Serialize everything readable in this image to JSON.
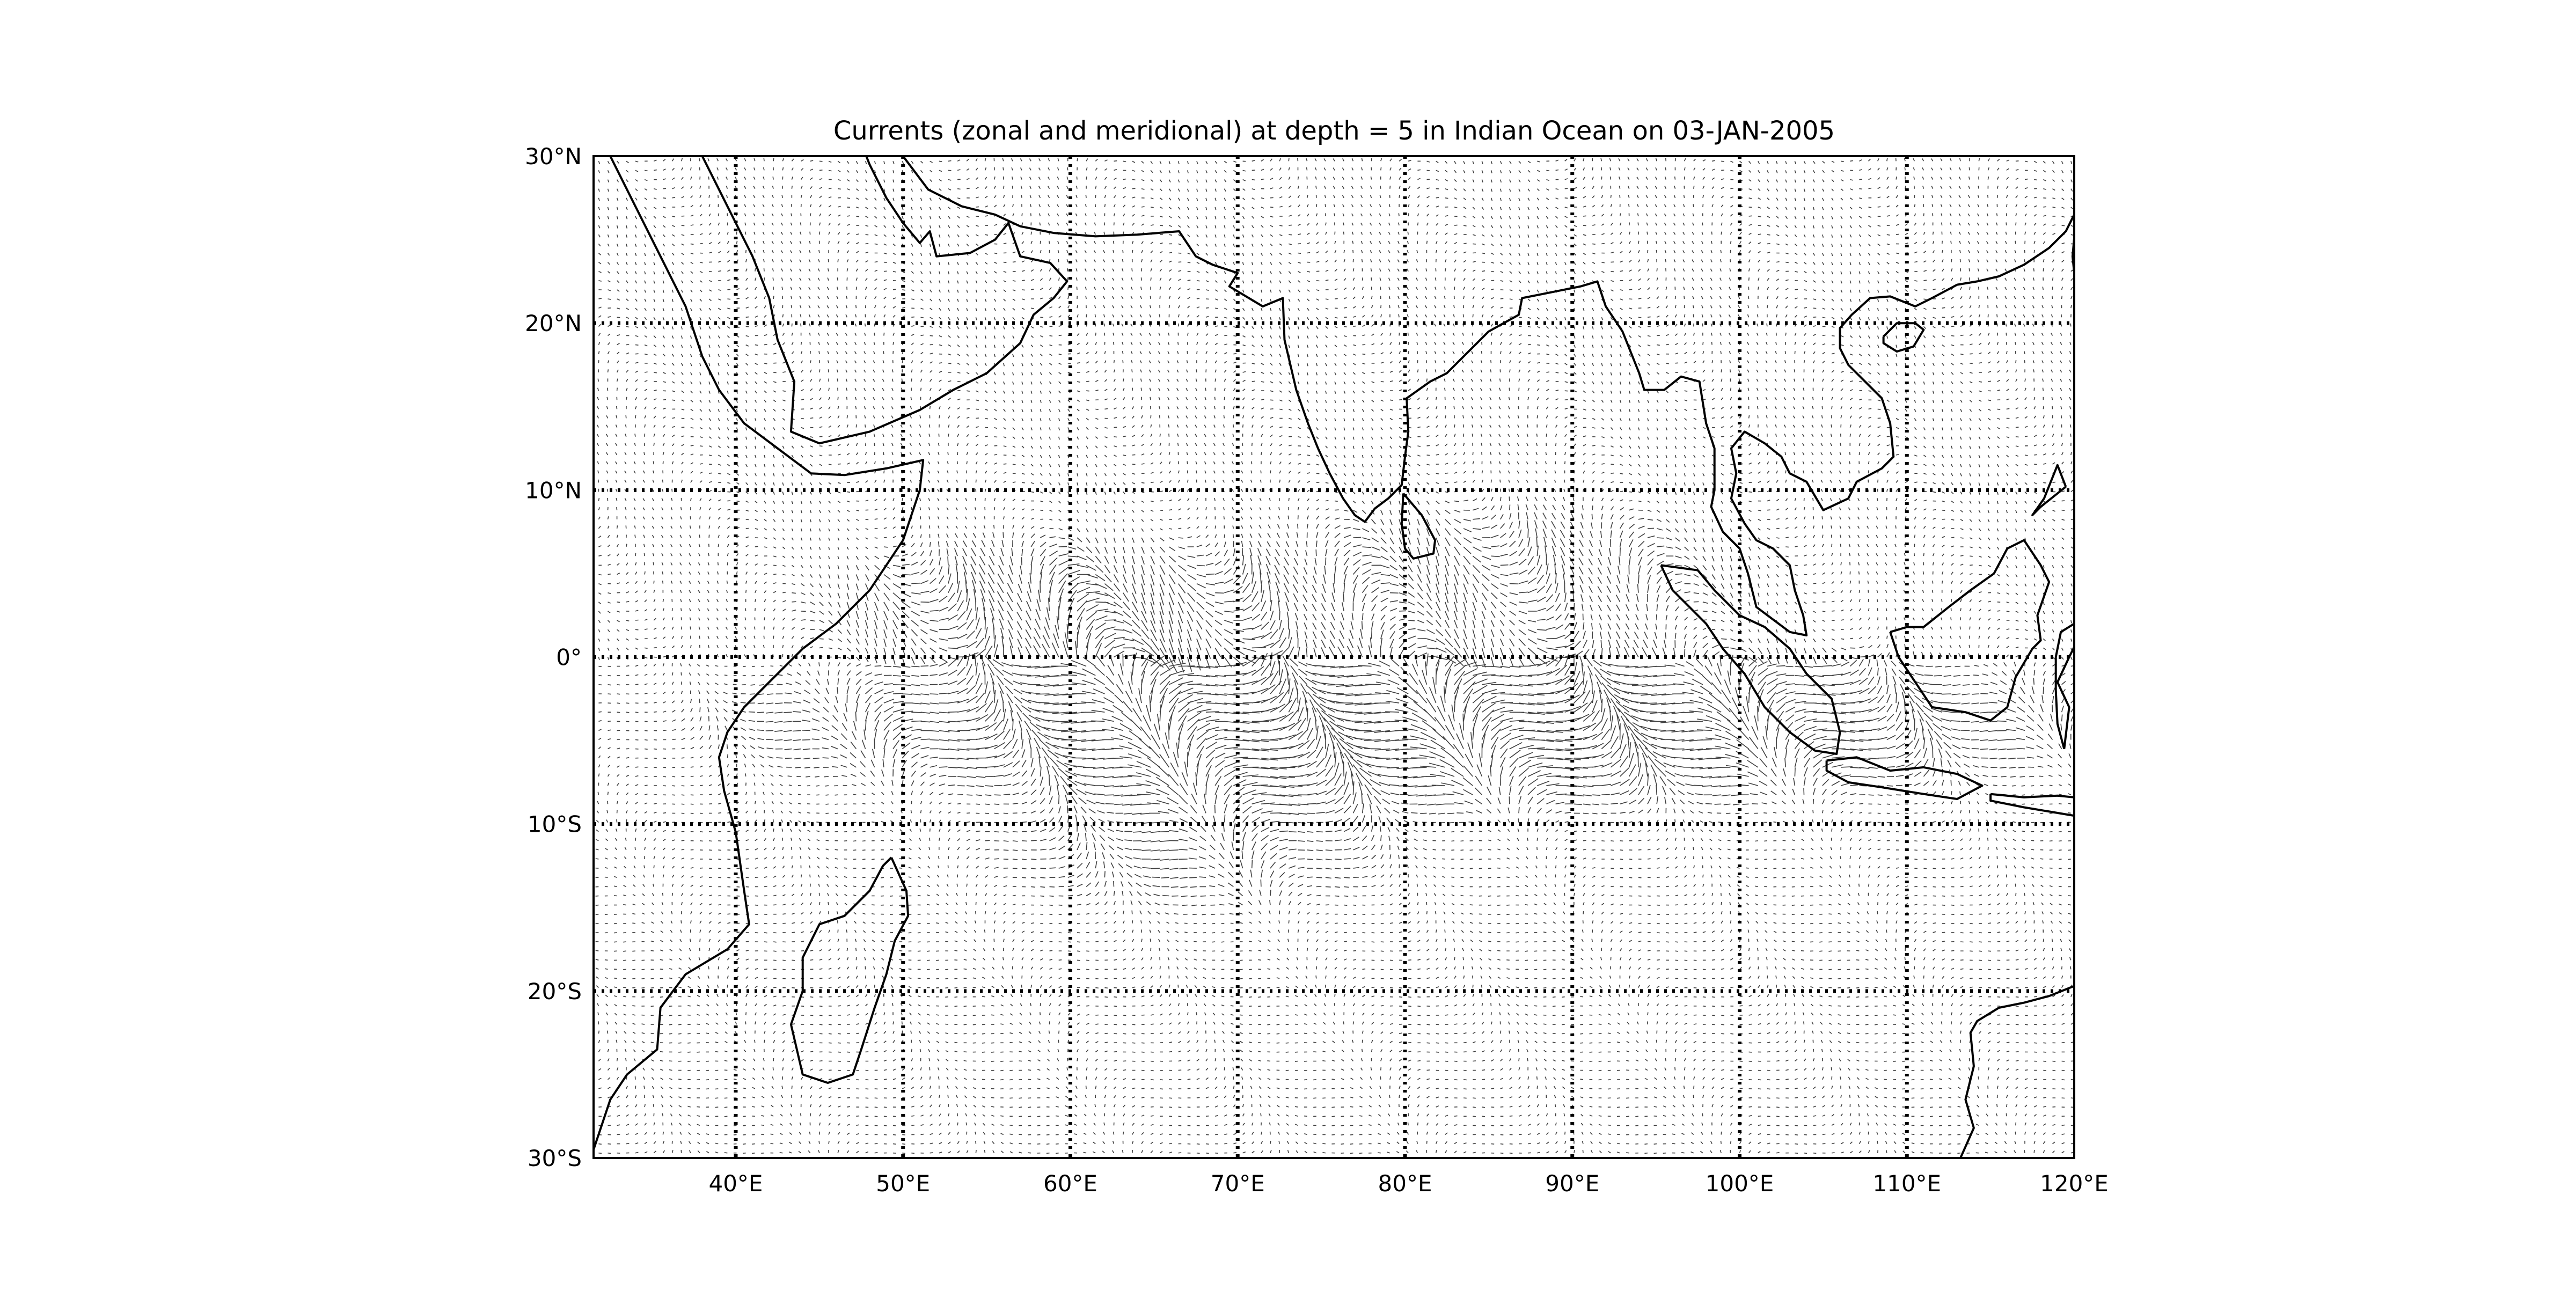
{
  "title": "Currents (zonal and meridional) at depth = 5 in Indian Ocean on 03-JAN-2005",
  "map": {
    "lon_range": [
      31.5,
      120
    ],
    "lat_range": [
      -30,
      30
    ],
    "projection": "cylindrical",
    "gridlines": "dotted",
    "lon_ticks": [
      {
        "value": 40,
        "label": "40°E"
      },
      {
        "value": 50,
        "label": "50°E"
      },
      {
        "value": 60,
        "label": "60°E"
      },
      {
        "value": 70,
        "label": "70°E"
      },
      {
        "value": 80,
        "label": "80°E"
      },
      {
        "value": 90,
        "label": "90°E"
      },
      {
        "value": 100,
        "label": "100°E"
      },
      {
        "value": 110,
        "label": "110°E"
      },
      {
        "value": 120,
        "label": "120°E"
      }
    ],
    "lat_ticks": [
      {
        "value": 30,
        "label": "30°N"
      },
      {
        "value": 20,
        "label": "20°N"
      },
      {
        "value": 10,
        "label": "10°N"
      },
      {
        "value": 0,
        "label": "0°"
      },
      {
        "value": -10,
        "label": "10°S"
      },
      {
        "value": -20,
        "label": "20°S"
      },
      {
        "value": -30,
        "label": "30°S"
      }
    ],
    "coastlines": [
      {
        "name": "africa-coast",
        "points": [
          [
            32.5,
            30
          ],
          [
            34,
            27
          ],
          [
            35.5,
            24
          ],
          [
            37,
            21
          ],
          [
            38,
            18
          ],
          [
            39,
            16
          ],
          [
            40.5,
            14
          ],
          [
            42.5,
            12.5
          ],
          [
            44.5,
            11
          ],
          [
            46.5,
            10.9
          ],
          [
            49,
            11.3
          ],
          [
            51.2,
            11.8
          ],
          [
            51,
            10
          ],
          [
            50,
            7
          ],
          [
            48,
            4
          ],
          [
            46,
            2
          ],
          [
            44,
            0.5
          ],
          [
            42,
            -1.5
          ],
          [
            40.5,
            -3
          ],
          [
            39.5,
            -4.5
          ],
          [
            39,
            -6
          ],
          [
            39.3,
            -8
          ],
          [
            40,
            -10.5
          ],
          [
            40.5,
            -14
          ],
          [
            40.8,
            -16
          ],
          [
            39.5,
            -17.5
          ],
          [
            37,
            -19
          ],
          [
            35.5,
            -21
          ],
          [
            35.3,
            -23.5
          ],
          [
            33.5,
            -25
          ],
          [
            32.5,
            -26.5
          ],
          [
            31.5,
            -29.5
          ]
        ]
      },
      {
        "name": "arabia-coast",
        "points": [
          [
            38,
            30
          ],
          [
            39,
            28
          ],
          [
            40,
            26
          ],
          [
            41,
            24
          ],
          [
            42,
            21.5
          ],
          [
            42.5,
            19
          ],
          [
            43.5,
            16.5
          ],
          [
            43.3,
            13.5
          ],
          [
            45,
            12.8
          ],
          [
            48,
            13.5
          ],
          [
            51,
            14.8
          ],
          [
            53,
            16
          ],
          [
            55,
            17
          ],
          [
            57,
            18.8
          ],
          [
            57.8,
            20.5
          ],
          [
            59,
            21.5
          ],
          [
            59.8,
            22.5
          ],
          [
            58.8,
            23.6
          ],
          [
            57,
            24
          ],
          [
            56.3,
            26
          ],
          [
            55.5,
            25
          ],
          [
            54,
            24.2
          ],
          [
            52,
            24
          ],
          [
            51.6,
            25.5
          ],
          [
            51,
            24.8
          ],
          [
            50,
            26
          ],
          [
            49,
            27.5
          ],
          [
            48,
            29.5
          ],
          [
            47.8,
            30
          ]
        ]
      },
      {
        "name": "persian-gulf-north-coast",
        "points": [
          [
            50,
            30
          ],
          [
            51.5,
            28
          ],
          [
            53.5,
            27
          ],
          [
            55.5,
            26.5
          ],
          [
            57,
            25.8
          ],
          [
            59,
            25.4
          ],
          [
            61.5,
            25.2
          ],
          [
            64,
            25.3
          ],
          [
            66.5,
            25.5
          ],
          [
            67.5,
            24
          ],
          [
            68.5,
            23.5
          ],
          [
            70,
            23
          ],
          [
            69.5,
            22.2
          ],
          [
            71.5,
            21
          ],
          [
            72.7,
            21.5
          ],
          [
            72.8,
            19
          ],
          [
            73.5,
            16
          ],
          [
            74.2,
            14
          ],
          [
            74.8,
            12.5
          ],
          [
            75.5,
            11
          ],
          [
            76.3,
            9.5
          ],
          [
            77,
            8.5
          ],
          [
            77.6,
            8.1
          ],
          [
            78.2,
            8.9
          ],
          [
            79,
            9.5
          ],
          [
            79.8,
            10.3
          ],
          [
            80,
            12
          ],
          [
            80.2,
            13.5
          ],
          [
            80.1,
            15.5
          ],
          [
            81.5,
            16.5
          ],
          [
            82.5,
            17
          ],
          [
            84,
            18.5
          ],
          [
            85,
            19.5
          ],
          [
            86.8,
            20.5
          ],
          [
            87,
            21.5
          ],
          [
            88.5,
            21.8
          ],
          [
            89.5,
            22
          ],
          [
            90.5,
            22.2
          ],
          [
            91.5,
            22.5
          ],
          [
            92,
            21
          ],
          [
            93,
            19.5
          ],
          [
            94,
            17
          ],
          [
            94.3,
            16
          ],
          [
            95.5,
            16
          ],
          [
            96.5,
            16.8
          ],
          [
            97.6,
            16.5
          ],
          [
            98,
            14
          ],
          [
            98.5,
            12.5
          ],
          [
            98.5,
            10
          ],
          [
            98.3,
            9
          ],
          [
            99,
            7.5
          ],
          [
            100,
            6.5
          ],
          [
            100.5,
            5
          ],
          [
            101,
            3
          ],
          [
            103,
            1.5
          ],
          [
            104,
            1.3
          ],
          [
            103.8,
            2.5
          ],
          [
            103.3,
            4
          ],
          [
            103,
            5.5
          ],
          [
            102,
            6.5
          ],
          [
            101,
            7
          ],
          [
            100.3,
            8
          ],
          [
            99.5,
            9.5
          ],
          [
            99.8,
            11
          ],
          [
            99.5,
            12.5
          ],
          [
            100.3,
            13.5
          ],
          [
            101.5,
            12.8
          ],
          [
            102.5,
            12
          ],
          [
            103,
            11
          ],
          [
            104,
            10.5
          ],
          [
            105,
            8.8
          ],
          [
            106.5,
            9.5
          ],
          [
            107,
            10.5
          ],
          [
            108.5,
            11.3
          ],
          [
            109.2,
            12
          ],
          [
            109,
            14
          ],
          [
            108.5,
            15.5
          ],
          [
            107.5,
            16.5
          ],
          [
            106.5,
            17.5
          ],
          [
            106,
            18.5
          ],
          [
            106,
            19.7
          ],
          [
            106.7,
            20.5
          ],
          [
            107.8,
            21.5
          ],
          [
            109,
            21.6
          ],
          [
            110.5,
            21
          ],
          [
            111.5,
            21.5
          ],
          [
            113,
            22.3
          ],
          [
            114.2,
            22.5
          ],
          [
            115.5,
            22.8
          ],
          [
            117,
            23.5
          ],
          [
            118.5,
            24.5
          ],
          [
            119.5,
            25.5
          ],
          [
            120,
            26.5
          ]
        ]
      },
      {
        "name": "madagascar-coast",
        "points": [
          [
            49.3,
            -12
          ],
          [
            50.2,
            -14
          ],
          [
            50.3,
            -15.5
          ],
          [
            49.5,
            -17
          ],
          [
            49,
            -19
          ],
          [
            48.3,
            -21
          ],
          [
            47.5,
            -23.5
          ],
          [
            47,
            -25
          ],
          [
            45.5,
            -25.5
          ],
          [
            44,
            -25
          ],
          [
            43.3,
            -22
          ],
          [
            44,
            -20
          ],
          [
            44,
            -18
          ],
          [
            45,
            -16
          ],
          [
            46.5,
            -15.5
          ],
          [
            48,
            -14
          ],
          [
            48.8,
            -12.5
          ],
          [
            49.3,
            -12
          ]
        ]
      },
      {
        "name": "sri-lanka-coast",
        "points": [
          [
            79.9,
            9.8
          ],
          [
            81,
            8.5
          ],
          [
            81.8,
            7
          ],
          [
            81.7,
            6.2
          ],
          [
            80.5,
            5.9
          ],
          [
            80,
            6.5
          ],
          [
            79.8,
            8
          ],
          [
            79.9,
            9.8
          ]
        ]
      },
      {
        "name": "sumatra-coast",
        "points": [
          [
            95.3,
            5.5
          ],
          [
            97.5,
            5.2
          ],
          [
            98.5,
            4
          ],
          [
            100,
            2.5
          ],
          [
            101.5,
            1.8
          ],
          [
            103,
            0.5
          ],
          [
            104,
            -1
          ],
          [
            105.5,
            -2.5
          ],
          [
            106,
            -4.5
          ],
          [
            105.8,
            -5.8
          ],
          [
            104.5,
            -5.6
          ],
          [
            103,
            -4.5
          ],
          [
            101.5,
            -3
          ],
          [
            100.3,
            -1
          ],
          [
            99,
            0.5
          ],
          [
            98,
            2
          ],
          [
            96,
            4
          ],
          [
            95.3,
            5.5
          ]
        ]
      },
      {
        "name": "java-coast",
        "points": [
          [
            105.2,
            -6.2
          ],
          [
            107,
            -6
          ],
          [
            109,
            -6.8
          ],
          [
            111,
            -6.6
          ],
          [
            113,
            -7
          ],
          [
            114.5,
            -7.7
          ],
          [
            113,
            -8.5
          ],
          [
            111,
            -8.2
          ],
          [
            108.5,
            -7.8
          ],
          [
            106.5,
            -7.5
          ],
          [
            105.2,
            -6.8
          ],
          [
            105.2,
            -6.2
          ]
        ]
      },
      {
        "name": "lesser-sunda-coast",
        "points": [
          [
            115,
            -8.2
          ],
          [
            117,
            -8.4
          ],
          [
            119,
            -8.3
          ],
          [
            121,
            -8.5
          ],
          [
            120,
            -9.5
          ],
          [
            117,
            -9
          ],
          [
            115,
            -8.6
          ],
          [
            115,
            -8.2
          ]
        ]
      },
      {
        "name": "borneo-coast",
        "points": [
          [
            109,
            1.5
          ],
          [
            109.5,
            0
          ],
          [
            110.5,
            -1.5
          ],
          [
            111.5,
            -3
          ],
          [
            113.5,
            -3.3
          ],
          [
            115,
            -3.8
          ],
          [
            116,
            -3
          ],
          [
            116.5,
            -1.2
          ],
          [
            117.5,
            0.5
          ],
          [
            118,
            1
          ],
          [
            117.8,
            2.5
          ],
          [
            118.5,
            4.5
          ],
          [
            118,
            5.5
          ],
          [
            117,
            7
          ],
          [
            116,
            6.5
          ],
          [
            115.2,
            5
          ],
          [
            113.8,
            4
          ],
          [
            112.5,
            3
          ],
          [
            111,
            1.8
          ],
          [
            110,
            1.8
          ],
          [
            109,
            1.5
          ]
        ]
      },
      {
        "name": "sulawesi-coast",
        "points": [
          [
            119.4,
            -5.5
          ],
          [
            119.7,
            -3
          ],
          [
            119,
            -1.5
          ],
          [
            119.7,
            0
          ],
          [
            120.1,
            0.8
          ],
          [
            120,
            2
          ],
          [
            119.2,
            1.5
          ],
          [
            118.9,
            0
          ],
          [
            118.9,
            -2
          ],
          [
            119,
            -4
          ],
          [
            119.4,
            -5.5
          ]
        ]
      },
      {
        "name": "australia-coast",
        "points": [
          [
            113.2,
            -30
          ],
          [
            114,
            -28.2
          ],
          [
            113.5,
            -26.5
          ],
          [
            114,
            -24.5
          ],
          [
            113.8,
            -22.5
          ],
          [
            114.2,
            -21.8
          ],
          [
            115.5,
            -21
          ],
          [
            117,
            -20.7
          ],
          [
            118.5,
            -20.3
          ],
          [
            120,
            -19.7
          ]
        ]
      },
      {
        "name": "hainan-coast",
        "points": [
          [
            108.6,
            19.2
          ],
          [
            109.4,
            20
          ],
          [
            110.5,
            20
          ],
          [
            111,
            19.6
          ],
          [
            110.4,
            18.6
          ],
          [
            109.4,
            18.3
          ],
          [
            108.6,
            18.8
          ],
          [
            108.6,
            19.2
          ]
        ]
      },
      {
        "name": "taiwan-coast",
        "points": [
          [
            120,
            25.1
          ],
          [
            119.9,
            24
          ],
          [
            120,
            23
          ],
          [
            120,
            22.5
          ]
        ]
      },
      {
        "name": "philippines-coast",
        "points": [
          [
            119.5,
            10.2
          ],
          [
            119,
            11.5
          ],
          [
            118.2,
            9.5
          ],
          [
            117.5,
            8.5
          ],
          [
            118,
            9
          ],
          [
            119.5,
            10.2
          ]
        ]
      }
    ]
  },
  "currents": {
    "description_hint": "surface current vectors drawn densely over ocean; strongest along equatorial band 0–8°S and Somali coast",
    "strong_bands": [
      {
        "lon_from": 42,
        "lon_to": 120,
        "lat_from": -8,
        "lat_to": 0,
        "strength": 1.0
      },
      {
        "lon_from": 45,
        "lon_to": 75,
        "lat_from": 0,
        "lat_to": 6,
        "strength": 0.7
      },
      {
        "lon_from": 70,
        "lon_to": 100,
        "lat_from": 2,
        "lat_to": 8,
        "strength": 0.5
      },
      {
        "lon_from": 55,
        "lon_to": 80,
        "lat_from": -14,
        "lat_to": -8,
        "strength": 0.4
      }
    ]
  }
}
